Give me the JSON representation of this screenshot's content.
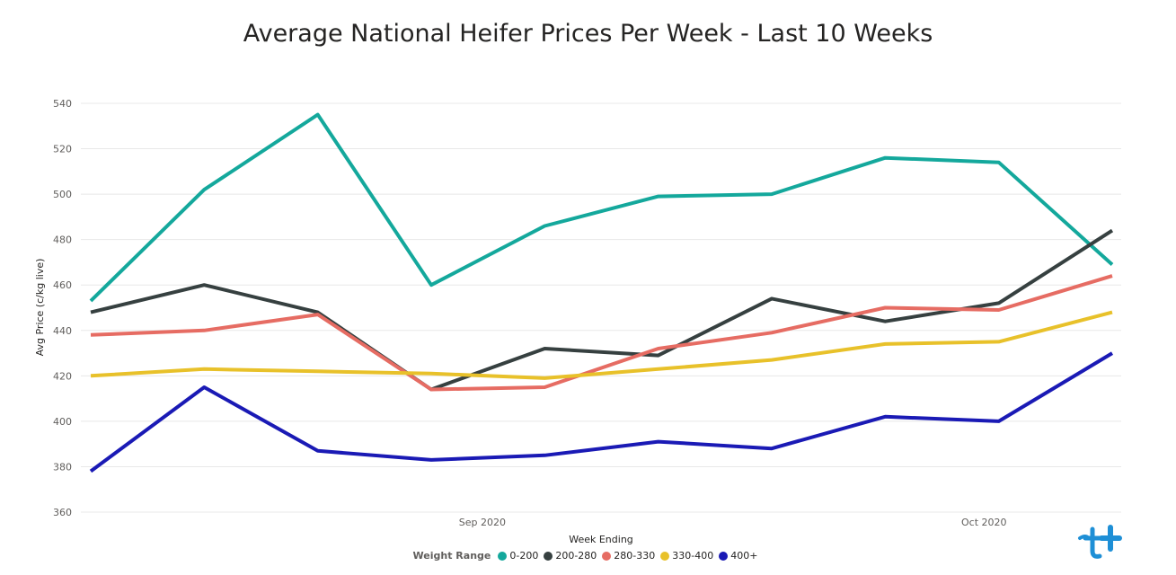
{
  "chart_data": {
    "type": "line",
    "title": "Average National Heifer Prices Per Week - Last 10 Weeks",
    "xlabel": "Week Ending",
    "ylabel": "Avg Price (c/kg live)",
    "ylim": [
      360,
      540
    ],
    "yticks": [
      "360",
      "380",
      "400",
      "420",
      "440",
      "460",
      "480",
      "500",
      "520",
      "540"
    ],
    "x_tick_labels": [
      {
        "label": "Sep 2020",
        "at_index": 3.45
      },
      {
        "label": "Oct 2020",
        "at_index": 7.87
      }
    ],
    "x": [
      0,
      1,
      2,
      3,
      4,
      5,
      6,
      7,
      8,
      9
    ],
    "grid": true,
    "legend_title": "Weight Range",
    "legend_position": "bottom",
    "series": [
      {
        "name": "0-200",
        "color": "#14a89c",
        "values": [
          453,
          502,
          535,
          460,
          486,
          499,
          500,
          516,
          514,
          469
        ]
      },
      {
        "name": "200-280",
        "color": "#364040",
        "values": [
          448,
          460,
          448,
          414,
          432,
          429,
          454,
          444,
          452,
          484
        ]
      },
      {
        "name": "280-330",
        "color": "#e66c63",
        "values": [
          438,
          440,
          447,
          414,
          415,
          432,
          439,
          450,
          449,
          464
        ]
      },
      {
        "name": "330-400",
        "color": "#e8c12a",
        "values": [
          420,
          423,
          422,
          421,
          419,
          423,
          427,
          434,
          435,
          448
        ]
      },
      {
        "name": "400+",
        "color": "#1a1ab5",
        "values": [
          378,
          415,
          387,
          383,
          385,
          391,
          388,
          402,
          400,
          430
        ]
      }
    ]
  },
  "logo": {
    "name": "brand-logo",
    "color": "#1e8fd6"
  }
}
